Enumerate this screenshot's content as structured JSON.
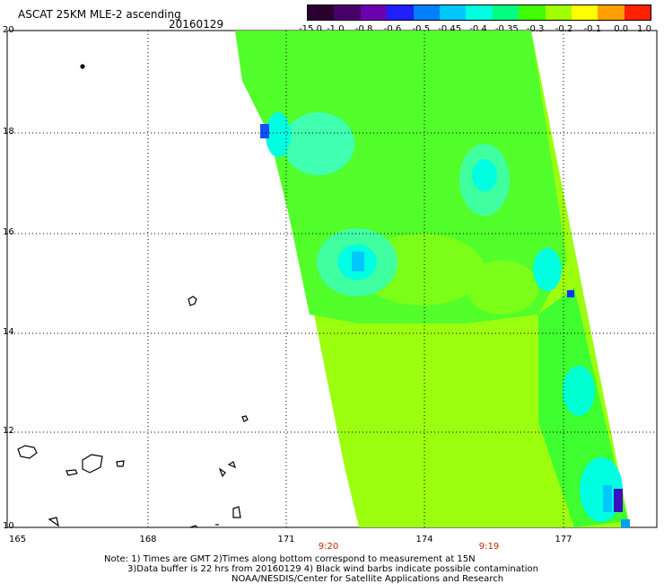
{
  "header": {
    "title": "ASCAT 25KM MLE-2 ascending",
    "date": "20160129"
  },
  "colorbar": {
    "labels": [
      "-15.0",
      "-1.0",
      "-0.8",
      "-0.6",
      "-0.5",
      "-0.45",
      "-0.4",
      "-0.35",
      "-0.3",
      "-0.2",
      "-0.1",
      "0.0",
      "1.0"
    ],
    "colors": [
      "#2a0030",
      "#4a006a",
      "#6a00b0",
      "#2020ff",
      "#0080ff",
      "#00c8ff",
      "#00ffe0",
      "#00ff80",
      "#40ff00",
      "#a0ff00",
      "#ffff00",
      "#ffa000",
      "#ff2000"
    ]
  },
  "axes": {
    "lat_labels": [
      "20",
      "18",
      "16",
      "14",
      "12",
      "10"
    ],
    "lon_labels": [
      "165",
      "168",
      "171",
      "174",
      "177"
    ],
    "time_labels": [
      "9:20",
      "9:19"
    ]
  },
  "notes": {
    "line1": "Note: 1) Times are GMT 2)Times along bottom correspond to measurement at 15N",
    "line2": "3)Data buffer is 22 hrs from 20160129 4) Black wind barbs indicate possible contamination",
    "line3": "NOAA/NESDIS/Center for Satellite Applications and Research"
  }
}
